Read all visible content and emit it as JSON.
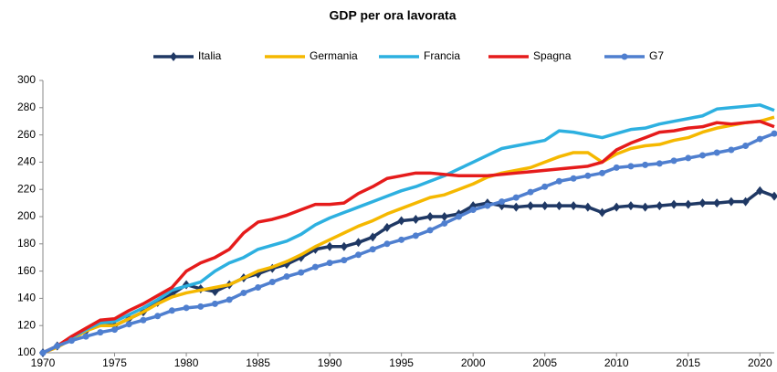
{
  "chart_data": {
    "type": "line",
    "title": "GDP  per ora lavorata",
    "x": [
      1970,
      1971,
      1972,
      1973,
      1974,
      1975,
      1976,
      1977,
      1978,
      1979,
      1980,
      1981,
      1982,
      1983,
      1984,
      1985,
      1986,
      1987,
      1988,
      1989,
      1990,
      1991,
      1992,
      1993,
      1994,
      1995,
      1996,
      1997,
      1998,
      1999,
      2000,
      2001,
      2002,
      2003,
      2004,
      2005,
      2006,
      2007,
      2008,
      2009,
      2010,
      2011,
      2012,
      2013,
      2014,
      2015,
      2016,
      2017,
      2018,
      2019,
      2020,
      2021
    ],
    "series": [
      {
        "name": "Italia",
        "color": "#1f3864",
        "marker": "diamond",
        "values": [
          100,
          105,
          110,
          116,
          122,
          120,
          125,
          130,
          137,
          143,
          150,
          147,
          145,
          150,
          155,
          158,
          162,
          165,
          170,
          176,
          178,
          178,
          181,
          185,
          192,
          197,
          198,
          200,
          200,
          202,
          208,
          210,
          208,
          207,
          208,
          208,
          208,
          208,
          207,
          203,
          207,
          208,
          207,
          208,
          209,
          209,
          210,
          210,
          211,
          211,
          219,
          215
        ]
      },
      {
        "name": "Germania",
        "color": "#f5b800",
        "marker": "none",
        "values": [
          100,
          104,
          110,
          116,
          120,
          120,
          125,
          130,
          136,
          141,
          144,
          146,
          148,
          150,
          155,
          160,
          163,
          167,
          172,
          178,
          183,
          188,
          193,
          197,
          202,
          206,
          210,
          214,
          216,
          220,
          224,
          229,
          232,
          234,
          236,
          240,
          244,
          247,
          247,
          240,
          246,
          250,
          252,
          253,
          256,
          258,
          262,
          265,
          267,
          269,
          270,
          273
        ]
      },
      {
        "name": "Francia",
        "color": "#2db0e0",
        "marker": "none",
        "values": [
          100,
          105,
          111,
          117,
          122,
          123,
          128,
          133,
          139,
          146,
          149,
          152,
          160,
          166,
          170,
          176,
          179,
          182,
          187,
          194,
          199,
          203,
          207,
          211,
          215,
          219,
          222,
          226,
          230,
          235,
          240,
          245,
          250,
          252,
          254,
          256,
          263,
          262,
          260,
          258,
          261,
          264,
          265,
          268,
          270,
          272,
          274,
          279,
          280,
          281,
          282,
          278
        ]
      },
      {
        "name": "Spagna",
        "color": "#e51b1b",
        "marker": "none",
        "values": [
          100,
          105,
          112,
          118,
          124,
          125,
          131,
          136,
          142,
          148,
          160,
          166,
          170,
          176,
          188,
          196,
          198,
          201,
          205,
          209,
          209,
          210,
          217,
          222,
          228,
          230,
          232,
          232,
          231,
          230,
          230,
          230,
          231,
          232,
          233,
          234,
          235,
          236,
          237,
          240,
          249,
          254,
          258,
          262,
          263,
          265,
          266,
          269,
          268,
          269,
          270,
          266
        ]
      },
      {
        "name": "G7",
        "color": "#4f7fcf",
        "marker": "circle",
        "values": [
          100,
          105,
          109,
          112,
          115,
          117,
          121,
          124,
          127,
          131,
          133,
          134,
          136,
          139,
          144,
          148,
          152,
          156,
          159,
          163,
          166,
          168,
          172,
          176,
          180,
          183,
          186,
          190,
          195,
          200,
          205,
          208,
          211,
          214,
          218,
          222,
          226,
          228,
          230,
          232,
          236,
          237,
          238,
          239,
          241,
          243,
          245,
          247,
          249,
          252,
          257,
          261
        ]
      }
    ],
    "xlim": [
      1970,
      2021
    ],
    "xticks": [
      1970,
      1975,
      1980,
      1985,
      1990,
      1995,
      2000,
      2005,
      2010,
      2015,
      2020
    ],
    "ylim": [
      100,
      300
    ],
    "yticks": [
      100,
      120,
      140,
      160,
      180,
      200,
      220,
      240,
      260,
      280,
      300
    ],
    "grid": false
  }
}
